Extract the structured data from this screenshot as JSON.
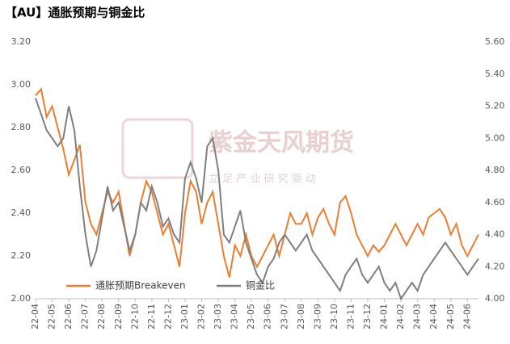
{
  "chart_data": {
    "type": "line",
    "title": "【AU】通胀预期与铜金比",
    "watermark": "紫金天风期货",
    "watermark_sub": "立 足 产 业   研 究 驱 动",
    "categories": [
      "22-04",
      null,
      null,
      "22-05",
      null,
      null,
      "22-06",
      null,
      null,
      "22-07",
      null,
      null,
      "22-08",
      null,
      null,
      "22-09",
      null,
      null,
      "22-10",
      null,
      null,
      "22-11",
      null,
      null,
      "22-12",
      null,
      null,
      "23-01",
      null,
      null,
      "23-02",
      null,
      null,
      "23-03",
      null,
      null,
      "23-04",
      null,
      null,
      "23-05",
      null,
      null,
      "23-06",
      null,
      null,
      "23-07",
      null,
      null,
      "23-08",
      null,
      null,
      "23-09",
      null,
      null,
      "23-10",
      null,
      null,
      "23-11",
      null,
      null,
      "23-12",
      null,
      null,
      "24-01",
      null,
      null,
      "24-02",
      null,
      null,
      "24-03",
      null,
      null,
      "24-04",
      null,
      null,
      "24-05",
      null,
      null,
      "24-06",
      null,
      null
    ],
    "series": [
      {
        "name": "通胀预期Breakeven",
        "color": "#ED7D31",
        "values": [
          2.95,
          2.98,
          2.85,
          2.9,
          2.8,
          2.7,
          2.58,
          2.65,
          2.72,
          2.45,
          2.35,
          2.3,
          2.4,
          2.5,
          2.45,
          2.5,
          2.35,
          2.2,
          2.3,
          2.45,
          2.55,
          2.5,
          2.4,
          2.3,
          2.35,
          2.25,
          2.15,
          2.4,
          2.55,
          2.5,
          2.35,
          2.45,
          2.5,
          2.35,
          2.2,
          2.1,
          2.25,
          2.2,
          2.3,
          2.2,
          2.15,
          2.2,
          2.25,
          2.3,
          2.2,
          2.3,
          2.4,
          2.35,
          2.35,
          2.4,
          2.3,
          2.38,
          2.42,
          2.35,
          2.3,
          2.45,
          2.48,
          2.4,
          2.3,
          2.25,
          2.2,
          2.25,
          2.22,
          2.25,
          2.3,
          2.35,
          2.3,
          2.25,
          2.3,
          2.35,
          2.3,
          2.38,
          2.4,
          2.42,
          2.38,
          2.3,
          2.35,
          2.25,
          2.2,
          2.25,
          2.3
        ]
      },
      {
        "name": "铜金比",
        "color": "#7F7F7F",
        "axis": "y2",
        "values": [
          5.25,
          5.15,
          5.05,
          5.0,
          4.95,
          5.0,
          5.2,
          5.05,
          4.7,
          4.4,
          4.2,
          4.3,
          4.5,
          4.7,
          4.55,
          4.6,
          4.45,
          4.3,
          4.4,
          4.6,
          4.55,
          4.7,
          4.6,
          4.45,
          4.5,
          4.4,
          4.35,
          4.75,
          4.85,
          4.75,
          4.6,
          4.95,
          5.0,
          4.8,
          4.4,
          4.35,
          4.45,
          4.55,
          4.35,
          4.25,
          4.15,
          4.1,
          4.2,
          4.25,
          4.35,
          4.4,
          4.35,
          4.3,
          4.35,
          4.4,
          4.3,
          4.25,
          4.2,
          4.15,
          4.1,
          4.05,
          4.15,
          4.2,
          4.25,
          4.15,
          4.1,
          4.15,
          4.2,
          4.1,
          4.05,
          4.1,
          4.0,
          4.05,
          4.1,
          4.05,
          4.15,
          4.2,
          4.25,
          4.3,
          4.35,
          4.3,
          4.25,
          4.2,
          4.15,
          4.2,
          4.25
        ]
      }
    ],
    "ylim": [
      2.0,
      3.2
    ],
    "yticks": [
      {
        "value": 2.0,
        "label": "2.00"
      },
      {
        "value": 2.2,
        "label": "2.20"
      },
      {
        "value": 2.4,
        "label": "2.40"
      },
      {
        "value": 2.6,
        "label": "2.60"
      },
      {
        "value": 2.8,
        "label": "2.80"
      },
      {
        "value": 3.0,
        "label": "3.00"
      },
      {
        "value": 3.2,
        "label": "3.20"
      }
    ],
    "y2lim": [
      4.0,
      5.6
    ],
    "y2ticks": [
      {
        "value": 4.0,
        "label": "4.00"
      },
      {
        "value": 4.2,
        "label": "4.20"
      },
      {
        "value": 4.4,
        "label": "4.40"
      },
      {
        "value": 4.6,
        "label": "4.60"
      },
      {
        "value": 4.8,
        "label": "4.80"
      },
      {
        "value": 5.0,
        "label": "5.00"
      },
      {
        "value": 5.2,
        "label": "5.20"
      },
      {
        "value": 5.4,
        "label": "5.40"
      },
      {
        "value": 5.6,
        "label": "5.60"
      }
    ],
    "legend": "bottom-left"
  }
}
